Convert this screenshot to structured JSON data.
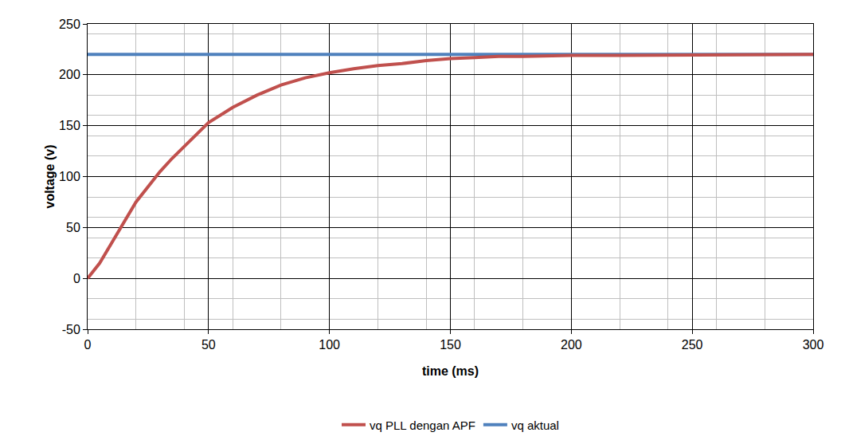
{
  "chart_data": {
    "type": "line",
    "x_label": "time (ms)",
    "y_label": "voltage (v)",
    "x": [
      0,
      5,
      10,
      15,
      20,
      25,
      30,
      35,
      40,
      45,
      50,
      60,
      70,
      80,
      90,
      100,
      110,
      120,
      130,
      140,
      150,
      160,
      170,
      180,
      200,
      220,
      250,
      300
    ],
    "series": [
      {
        "name": "vq PLL dengan APF",
        "color": "#c0504d",
        "values": [
          0,
          15,
          35,
          55,
          75,
          90,
          105,
          118,
          130,
          142,
          153,
          168,
          180,
          190,
          197,
          202,
          206,
          209,
          211,
          214,
          216,
          217,
          218,
          218,
          219,
          219,
          219.5,
          220
        ]
      },
      {
        "name": "vq aktual",
        "color": "#4f81bd",
        "values": [
          220,
          220,
          220,
          220,
          220,
          220,
          220,
          220,
          220,
          220,
          220,
          220,
          220,
          220,
          220,
          220,
          220,
          220,
          220,
          220,
          220,
          220,
          220,
          220,
          220,
          220,
          220,
          220
        ]
      }
    ],
    "xlim": [
      0,
      300
    ],
    "xticks": [
      0,
      50,
      100,
      150,
      200,
      250,
      300
    ],
    "ylim": [
      -50,
      250
    ],
    "yticks": [
      -50,
      0,
      50,
      100,
      150,
      200,
      250
    ],
    "grid": true,
    "legend": "bottom"
  }
}
